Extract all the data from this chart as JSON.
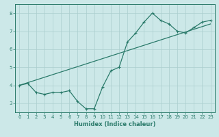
{
  "title": "",
  "xlabel": "Humidex (Indice chaleur)",
  "ylabel": "",
  "bg_color": "#cce8e8",
  "line_color": "#2a7a6a",
  "grid_color": "#aacece",
  "xlim": [
    -0.5,
    23.5
  ],
  "ylim": [
    2.5,
    8.5
  ],
  "xticks": [
    0,
    1,
    2,
    3,
    4,
    5,
    6,
    7,
    8,
    9,
    10,
    11,
    12,
    13,
    14,
    15,
    16,
    17,
    18,
    19,
    20,
    21,
    22,
    23
  ],
  "yticks": [
    3,
    4,
    5,
    6,
    7,
    8
  ],
  "curve1_x": [
    0,
    1,
    2,
    3,
    4,
    5,
    6,
    7,
    8,
    9,
    10,
    11,
    12,
    13,
    14,
    15,
    16,
    17,
    18,
    19,
    20,
    21,
    22,
    23
  ],
  "curve1_y": [
    4.0,
    4.1,
    3.6,
    3.5,
    3.6,
    3.6,
    3.7,
    3.1,
    2.7,
    2.7,
    3.9,
    4.8,
    5.0,
    6.4,
    6.9,
    7.5,
    8.0,
    7.6,
    7.4,
    7.0,
    6.9,
    7.2,
    7.5,
    7.6
  ],
  "curve2_x": [
    0,
    23
  ],
  "curve2_y": [
    4.0,
    7.4
  ]
}
